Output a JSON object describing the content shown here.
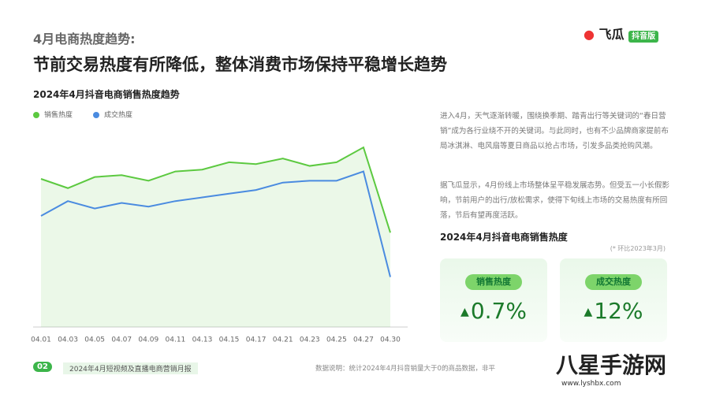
{
  "header": {
    "kicker": "4月电商热度趋势:",
    "headline": "节前交易热度有所降低，整体消费市场保持平稳增长趋势",
    "logo": "飞瓜",
    "badge": "抖音版"
  },
  "chart_data": {
    "type": "line",
    "title": "2024年4月抖音电商销售热度趋势",
    "categories": [
      "04.01",
      "04.03",
      "04.05",
      "04.07",
      "04.09",
      "04.11",
      "04.13",
      "04.15",
      "04.17",
      "04.21",
      "04.23",
      "04.25",
      "04.27",
      "04.30"
    ],
    "series": [
      {
        "name": "销售热度",
        "color": "#5cc940",
        "values": [
          80,
          75,
          81,
          82,
          79,
          84,
          85,
          89,
          88,
          91,
          87,
          89,
          97,
          51
        ]
      },
      {
        "name": "成交热度",
        "color": "#4a8be0",
        "values": [
          60,
          68,
          64,
          67,
          65,
          68,
          70,
          72,
          74,
          78,
          79,
          79,
          84,
          27
        ]
      }
    ],
    "ylim": [
      0,
      100
    ],
    "legend": "top-left"
  },
  "side": {
    "paragraphs": [
      "进入4月，天气逐渐转暖，围绕换季期、踏青出行等关键词的“春日营销”成为各行业绕不开的关键词。与此同时，也有不少品牌商家提前布局冰淇淋、电风扇等夏日商品以抢占市场，引发多品类抢购风潮。",
      "据飞瓜显示，4月份线上市场整体呈平稳发展态势。但受五一小长假影响，节前用户的出行/放松需求，使得下旬线上市场的交易热度有所回落，节后有望再度活跃。"
    ],
    "box_title": "2024年4月抖音电商销售热度",
    "note": "(* 环比2023年3月)",
    "cards": [
      {
        "label": "销售热度",
        "value": "0.7%"
      },
      {
        "label": "成交热度",
        "value": "12%"
      }
    ]
  },
  "footer": {
    "page": "02",
    "report": "2024年4月短视频及直播电商营销月报",
    "source": "数据说明：统计2024年4月抖音销量大于0的商品数据，非平",
    "watermark": "八星手游网",
    "url": "www.lyshbx.com"
  }
}
